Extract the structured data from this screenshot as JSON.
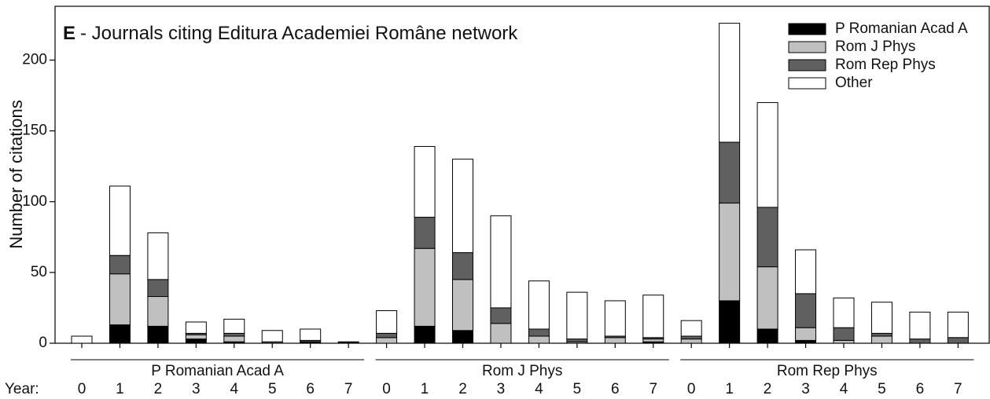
{
  "chart_data": {
    "type": "bar",
    "stacked": true,
    "panel_label": "E",
    "title": "- Journals citing Editura Academiei Române network",
    "y_label": "Number of citations",
    "x_prefix": "Year:",
    "groups": [
      {
        "name": "P Romanian Acad A",
        "span": 8
      },
      {
        "name": "Rom J Phys",
        "span": 8
      },
      {
        "name": "Rom Rep Phys",
        "span": 8
      }
    ],
    "categories": [
      "0",
      "1",
      "2",
      "3",
      "4",
      "5",
      "6",
      "7",
      "0",
      "1",
      "2",
      "3",
      "4",
      "5",
      "6",
      "7",
      "0",
      "1",
      "2",
      "3",
      "4",
      "5",
      "6",
      "7"
    ],
    "series": [
      {
        "name": "P Romanian Acad A",
        "color": "#000000",
        "values": [
          0,
          13,
          12,
          3,
          1,
          0,
          1,
          1,
          0,
          12,
          9,
          0,
          0,
          0,
          0,
          1,
          0,
          30,
          10,
          2,
          0,
          0,
          0,
          0
        ]
      },
      {
        "name": "Rom J Phys",
        "color": "#c0c0c0",
        "values": [
          0,
          36,
          21,
          3,
          4,
          0,
          0,
          0,
          4,
          55,
          36,
          14,
          5,
          1,
          4,
          2,
          3,
          69,
          44,
          9,
          2,
          5,
          0,
          0
        ]
      },
      {
        "name": "Rom Rep Phys",
        "color": "#606060",
        "values": [
          0,
          13,
          12,
          1,
          2,
          1,
          1,
          0,
          3,
          22,
          19,
          11,
          5,
          2,
          1,
          1,
          2,
          43,
          42,
          24,
          9,
          2,
          3,
          4
        ]
      },
      {
        "name": "Other",
        "color": "#ffffff",
        "values": [
          5,
          49,
          33,
          8,
          10,
          8,
          8,
          0,
          16,
          50,
          66,
          65,
          34,
          33,
          25,
          30,
          11,
          84,
          74,
          31,
          21,
          22,
          19,
          18
        ]
      }
    ],
    "ylim": [
      0,
      238
    ],
    "yticks": [
      0,
      50,
      100,
      150,
      200
    ],
    "legend": "upper right"
  }
}
